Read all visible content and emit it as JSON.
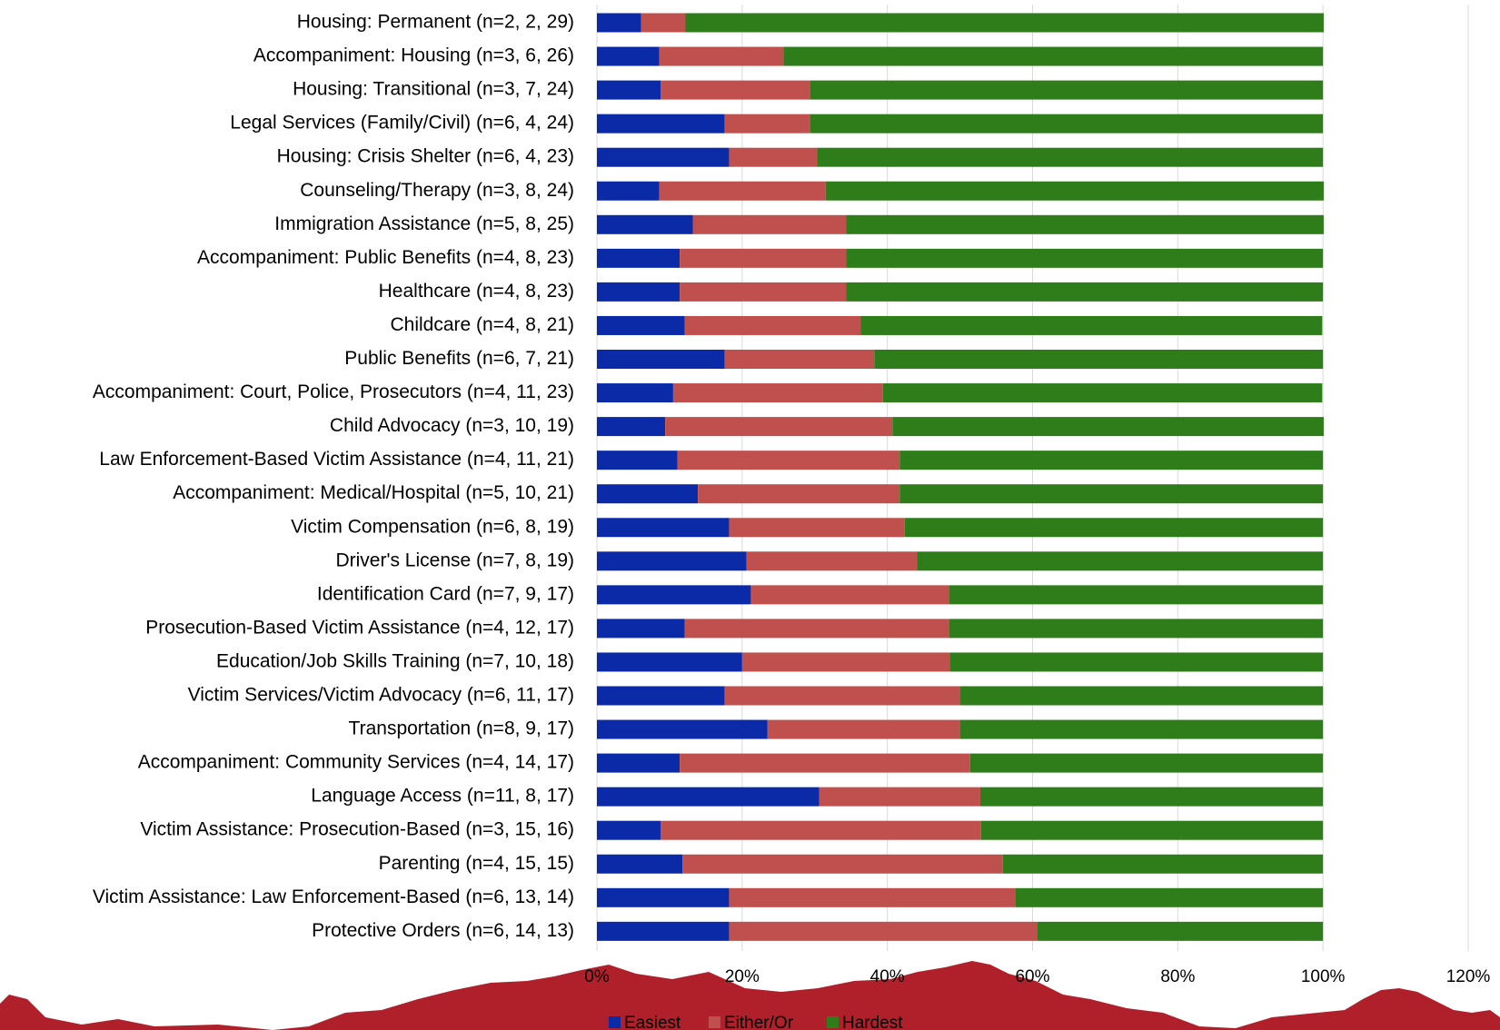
{
  "chart_data": {
    "type": "stacked-bar-horizontal",
    "categories": [
      "Housing: Permanent (n=2, 2, 29)",
      "Accompaniment: Housing (n=3, 6, 26)",
      "Housing: Transitional (n=3, 7, 24)",
      "Legal Services (Family/Civil) (n=6, 4, 24)",
      "Housing: Crisis Shelter (n=6, 4, 23)",
      "Counseling/Therapy (n=3, 8, 24)",
      "Immigration Assistance (n=5, 8, 25)",
      "Accompaniment: Public Benefits (n=4, 8, 23)",
      "Healthcare (n=4, 8, 23)",
      "Childcare (n=4, 8, 21)",
      "Public Benefits (n=6, 7, 21)",
      "Accompaniment: Court, Police, Prosecutors (n=4, 11, 23)",
      "Child Advocacy  (n=3, 10, 19)",
      "Law Enforcement-Based Victim Assistance (n=4, 11, 21)",
      "Accompaniment: Medical/Hospital (n=5, 10, 21)",
      "Victim Compensation (n=6, 8, 19)",
      "Driver's License (n=7, 8, 19)",
      "Identification Card (n=7, 9, 17)",
      "Prosecution-Based Victim Assistance (n=4, 12, 17)",
      "Education/Job Skills Training (n=7, 10, 18)",
      "Victim Services/Victim Advocacy (n=6, 11, 17)",
      "Transportation (n=8, 9, 17)",
      "Accompaniment: Community Services (n=4, 14, 17)",
      "Language Access (n=11, 8, 17)",
      "Victim Assistance: Prosecution-Based (n=3, 15, 16)",
      "Parenting (n=4, 15, 15)",
      "Victim Assistance: Law Enforcement-Based (n=6, 13, 14)",
      "Protective Orders (n=6, 14, 13)"
    ],
    "series": [
      {
        "name": "Easiest",
        "color": "#0a2aa8",
        "values": [
          6.1,
          8.6,
          8.8,
          17.6,
          18.2,
          8.6,
          13.2,
          11.4,
          11.4,
          12.1,
          17.6,
          10.5,
          9.4,
          11.1,
          13.9,
          18.2,
          20.6,
          21.2,
          12.1,
          20.0,
          17.6,
          23.5,
          11.4,
          30.6,
          8.8,
          11.8,
          18.2,
          18.2
        ]
      },
      {
        "name": "Either/Or",
        "color": "#c0504d",
        "values": [
          6.1,
          17.1,
          20.6,
          11.8,
          12.1,
          22.9,
          21.1,
          22.9,
          22.9,
          24.2,
          20.6,
          28.9,
          31.3,
          30.6,
          27.8,
          24.2,
          23.5,
          27.3,
          36.4,
          28.6,
          32.4,
          26.5,
          40.0,
          22.2,
          44.1,
          44.1,
          39.4,
          42.4
        ]
      },
      {
        "name": "Hardest",
        "color": "#2e7d1a",
        "values": [
          87.9,
          74.3,
          70.6,
          70.6,
          69.7,
          68.6,
          65.8,
          65.7,
          65.7,
          63.6,
          61.8,
          60.5,
          59.4,
          58.3,
          58.3,
          57.6,
          55.9,
          51.5,
          51.5,
          51.4,
          50.0,
          50.0,
          48.6,
          47.2,
          47.1,
          44.1,
          42.4,
          39.4
        ]
      }
    ],
    "xlim": [
      0,
      120
    ],
    "xticks": [
      {
        "value": 0,
        "label": "0%"
      },
      {
        "value": 20,
        "label": "20%"
      },
      {
        "value": 40,
        "label": "40%"
      },
      {
        "value": 60,
        "label": "60%"
      },
      {
        "value": 80,
        "label": "80%"
      },
      {
        "value": 100,
        "label": "100%"
      },
      {
        "value": 120,
        "label": "120%"
      }
    ],
    "grid": true,
    "legend": "bottom"
  }
}
